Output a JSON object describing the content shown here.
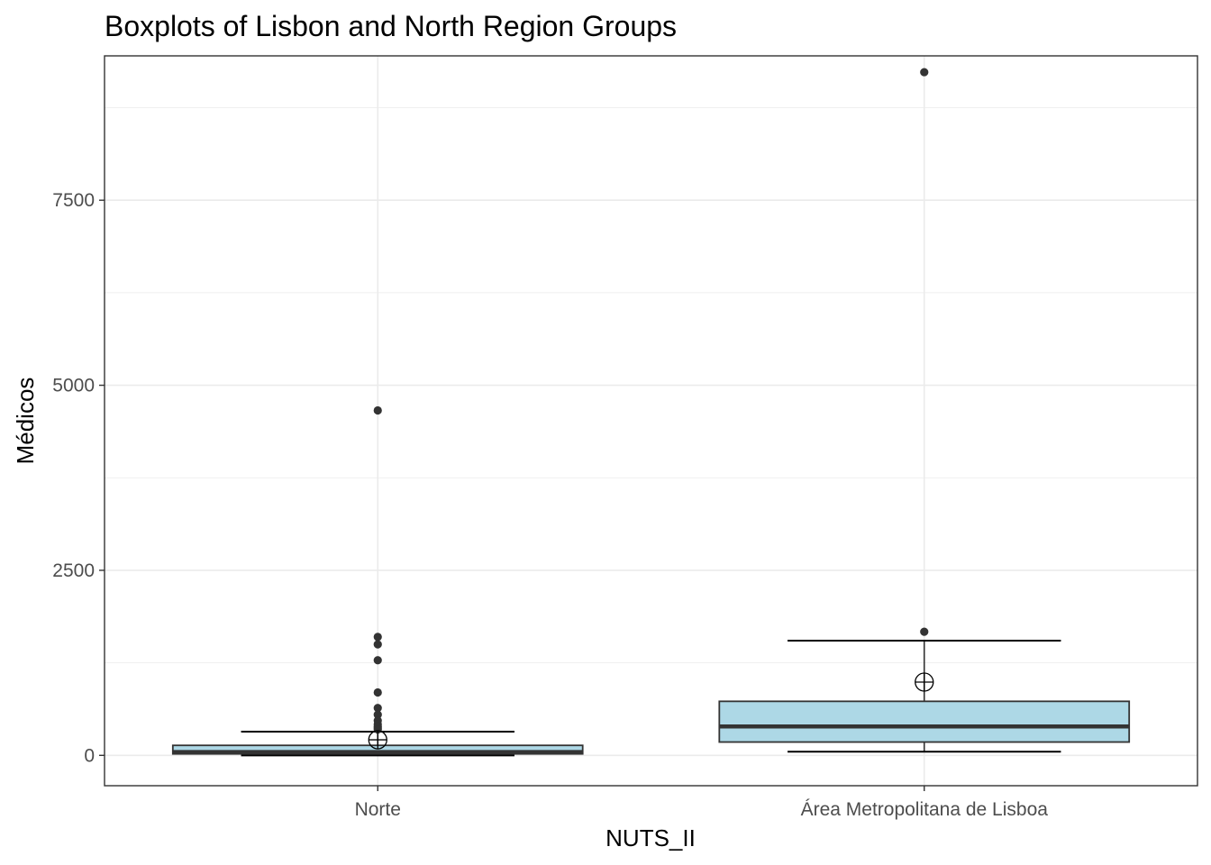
{
  "chart_data": {
    "type": "boxplot",
    "title": "Boxplots of Lisbon and North Region Groups",
    "xlabel": "NUTS_II",
    "ylabel": "Médicos",
    "ylim": [
      -410,
      9450
    ],
    "yticks": [
      0,
      2500,
      5000,
      7500
    ],
    "grid": true,
    "legend": "none",
    "colors": {
      "box_fill": "#add8e6",
      "box_stroke": "#333333",
      "point": "#333333",
      "grid": "#ebebeb"
    },
    "categories": [
      "Norte",
      "Área Metropolitana de Lisboa"
    ],
    "series": [
      {
        "category": "Norte",
        "whisker_low": 0,
        "q1": 20,
        "median": 45,
        "q3": 135,
        "whisker_high": 320,
        "mean": 210,
        "outliers": [
          4660,
          1600,
          1500,
          1285,
          850,
          640,
          550,
          470,
          420,
          390,
          370,
          350
        ]
      },
      {
        "category": "Área Metropolitana de Lisboa",
        "whisker_low": 50,
        "q1": 180,
        "median": 390,
        "q3": 730,
        "whisker_high": 1550,
        "mean": 990,
        "outliers": [
          9230,
          1670
        ]
      }
    ]
  }
}
